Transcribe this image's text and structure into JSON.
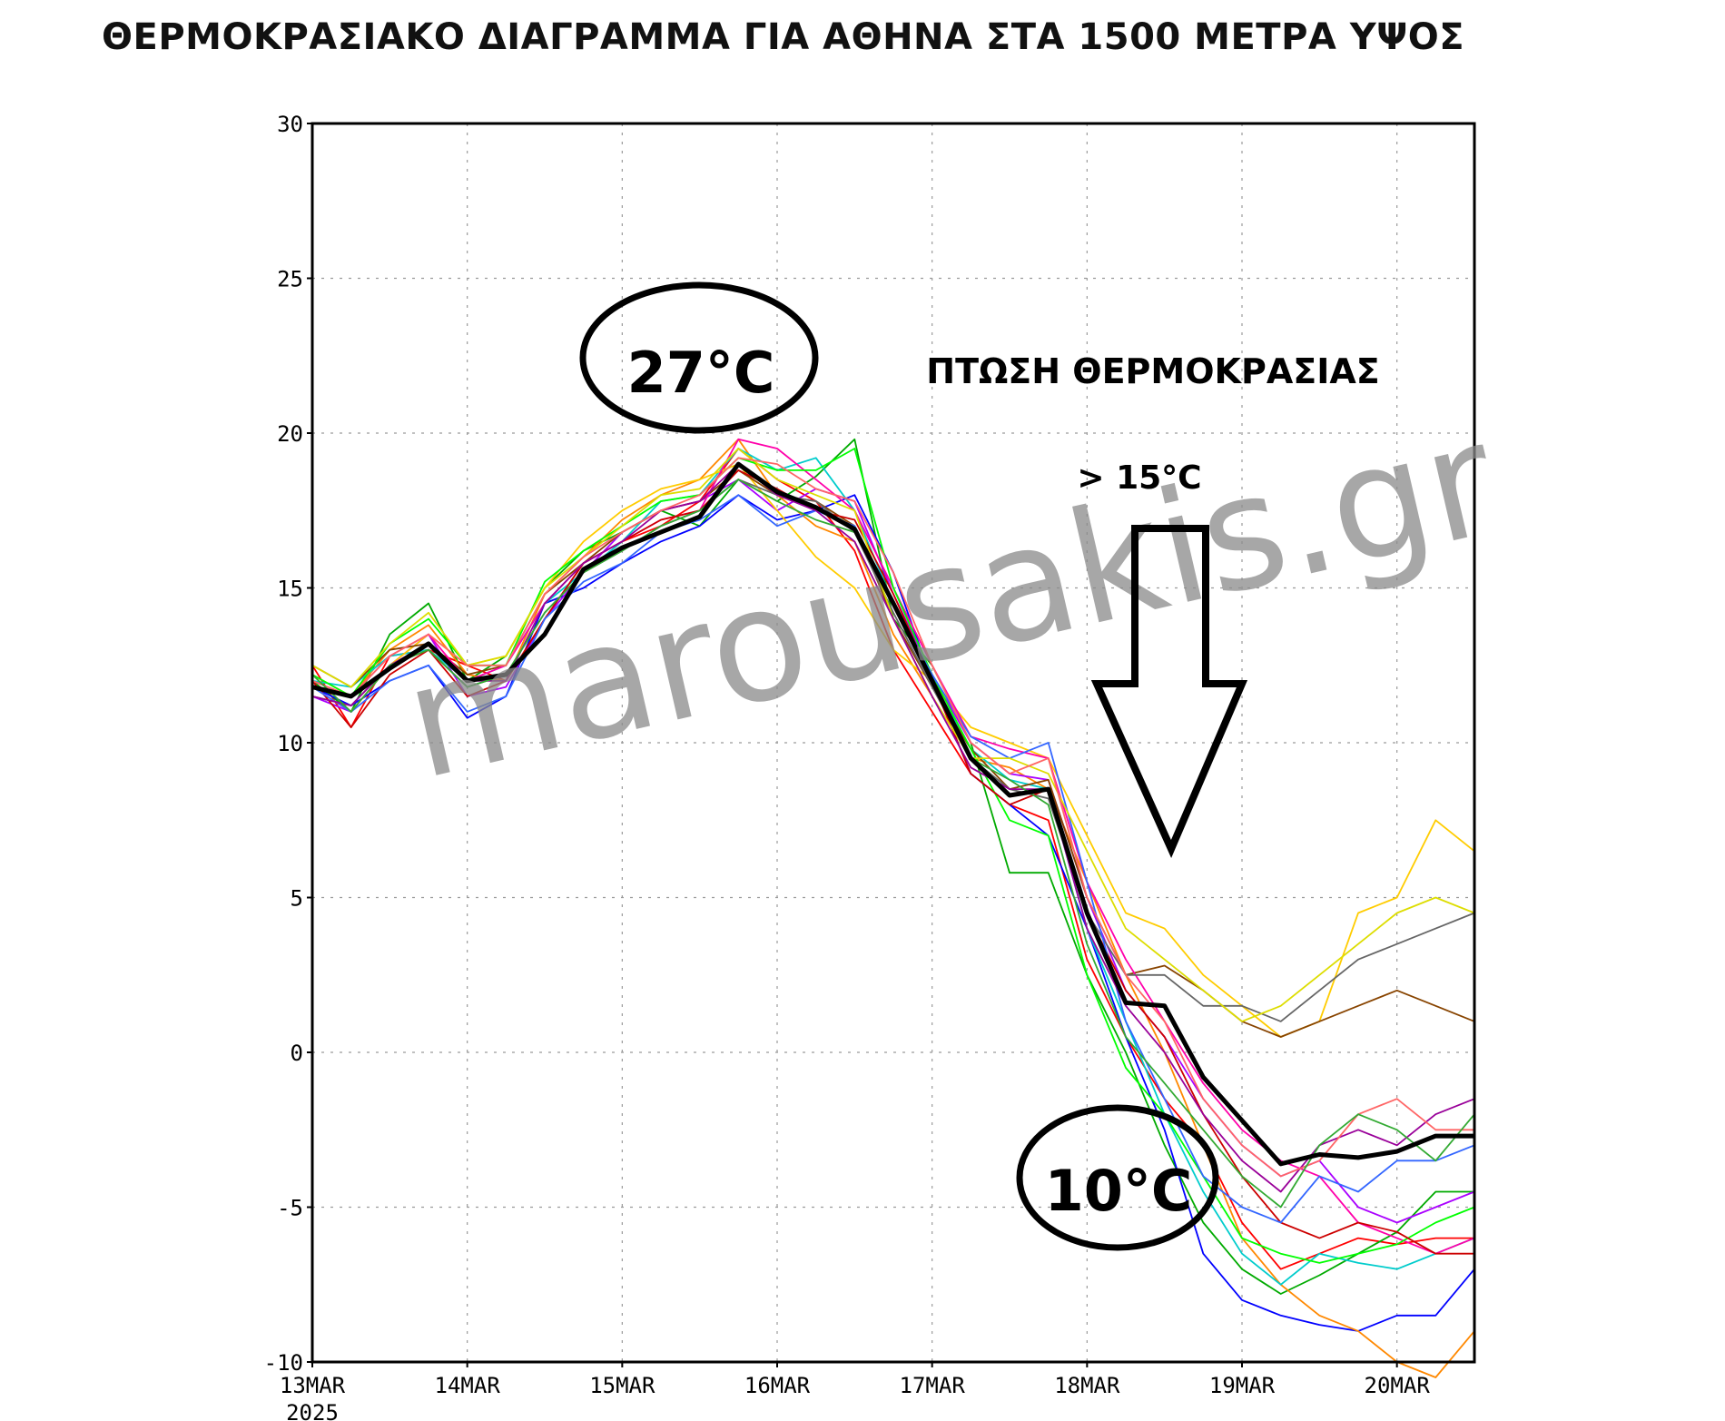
{
  "title": "ΘΕΡΜΟΚΡΑΣΙΑΚΟ ΔΙΑΓΡΑΜΜΑ ΓΙΑ ΑΘΗΝΑ ΣΤΑ 1500 ΜΕΤΡΑ ΥΨΟΣ",
  "watermark": "marousakis.gr",
  "annotations": {
    "peak_label": "27°C",
    "drop_label": "ΠΤΩΣΗ ΘΕΡΜΟΚΡΑΣΙΑΣ",
    "drop_amount": "> 15°C",
    "low_label": "10°C"
  },
  "colors": {
    "mean": "#000000",
    "members": [
      "#ff0000",
      "#00aa00",
      "#0000ff",
      "#ff8800",
      "#aa00ff",
      "#00cccc",
      "#ffcc00",
      "#884400",
      "#ff00aa",
      "#666666",
      "#00ff00",
      "#cc0000",
      "#3366ff",
      "#dddd00",
      "#990099",
      "#ff6666",
      "#33aa33"
    ]
  },
  "chart_data": {
    "type": "line",
    "title": "ΘΕΡΜΟΚΡΑΣΙΑΚΟ ΔΙΑΓΡΑΜΜΑ ΓΙΑ ΑΘΗΝΑ ΣΤΑ 1500 ΜΕΤΡΑ ΥΨΟΣ",
    "xlabel": "",
    "ylabel": "",
    "x_tick_labels": [
      "13MAR",
      "14MAR",
      "15MAR",
      "16MAR",
      "17MAR",
      "18MAR",
      "19MAR",
      "20MAR"
    ],
    "x_year_label": "2025",
    "y_ticks": [
      30,
      25,
      20,
      15,
      10,
      5,
      0,
      -5,
      -10
    ],
    "ylim": [
      -10,
      30
    ],
    "xlim_days": [
      0,
      7.5
    ],
    "grid": true,
    "x_days": [
      0,
      0.25,
      0.5,
      0.75,
      1,
      1.25,
      1.5,
      1.75,
      2,
      2.25,
      2.5,
      2.75,
      3,
      3.25,
      3.5,
      3.75,
      4,
      4.25,
      4.5,
      4.75,
      5,
      5.25,
      5.5,
      5.75,
      6,
      6.25,
      6.5,
      6.75,
      7,
      7.25,
      7.5
    ],
    "mean": [
      11.8,
      11.5,
      12.4,
      13.2,
      12.0,
      12.2,
      13.5,
      15.6,
      16.3,
      16.8,
      17.3,
      19.0,
      18.1,
      17.6,
      16.9,
      14.5,
      12.0,
      9.5,
      8.3,
      8.5,
      4.5,
      1.6,
      1.5,
      -0.8,
      -2.2,
      -3.6,
      -3.3,
      -3.4,
      -3.2,
      -2.7,
      -2.7
    ],
    "series": [
      {
        "values": [
          12.5,
          10.5,
          12.8,
          13.0,
          12.5,
          12.0,
          14.0,
          15.8,
          16.5,
          17.0,
          17.8,
          19.5,
          18.5,
          17.8,
          16.2,
          13.0,
          11.0,
          9.0,
          8.0,
          7.5,
          3.0,
          0.5,
          -1.5,
          -3.0,
          -5.5,
          -7.0,
          -6.5,
          -6.0,
          -6.2,
          -6.0,
          -6.0
        ]
      },
      {
        "values": [
          12.0,
          11.0,
          13.5,
          14.5,
          12.0,
          12.8,
          15.0,
          16.2,
          16.8,
          17.5,
          17.0,
          18.5,
          17.8,
          18.6,
          19.8,
          14.0,
          12.5,
          10.0,
          5.8,
          5.8,
          2.5,
          0.0,
          -3.0,
          -5.5,
          -7.0,
          -7.8,
          -7.2,
          -6.5,
          -5.8,
          -4.5,
          -4.5
        ]
      },
      {
        "values": [
          11.8,
          11.2,
          12.0,
          12.5,
          10.8,
          11.5,
          14.5,
          15.0,
          15.8,
          16.5,
          17.0,
          18.0,
          17.2,
          17.5,
          18.0,
          15.5,
          12.0,
          9.0,
          8.0,
          7.0,
          4.0,
          0.5,
          -2.5,
          -6.5,
          -8.0,
          -8.5,
          -8.8,
          -9.0,
          -8.5,
          -8.5,
          -7.0
        ]
      },
      {
        "values": [
          12.2,
          11.5,
          13.0,
          13.8,
          12.2,
          12.0,
          14.8,
          16.0,
          17.2,
          18.0,
          18.5,
          19.8,
          18.0,
          17.0,
          16.5,
          13.5,
          11.5,
          9.5,
          9.2,
          8.5,
          5.5,
          2.5,
          0.0,
          -3.0,
          -6.0,
          -7.5,
          -8.5,
          -9.0,
          -10.0,
          -10.5,
          -9.0
        ]
      },
      {
        "values": [
          11.5,
          11.0,
          12.5,
          13.5,
          11.5,
          11.8,
          14.0,
          15.5,
          16.8,
          17.5,
          17.8,
          18.5,
          17.5,
          18.2,
          17.8,
          14.8,
          12.2,
          10.0,
          9.0,
          8.8,
          5.0,
          2.0,
          0.5,
          -1.5,
          -3.0,
          -4.0,
          -3.5,
          -5.0,
          -5.5,
          -5.0,
          -4.5
        ]
      },
      {
        "values": [
          12.0,
          11.8,
          12.8,
          13.0,
          12.0,
          12.5,
          14.5,
          15.5,
          16.5,
          17.8,
          18.0,
          19.5,
          18.8,
          19.2,
          17.5,
          14.5,
          12.0,
          9.8,
          8.8,
          8.5,
          4.0,
          1.0,
          -2.0,
          -4.5,
          -6.5,
          -7.5,
          -6.5,
          -6.8,
          -7.0,
          -6.5,
          -6.0
        ]
      },
      {
        "values": [
          11.8,
          11.0,
          12.5,
          13.5,
          12.5,
          12.8,
          15.0,
          16.5,
          17.5,
          18.2,
          18.5,
          19.0,
          17.5,
          16.0,
          15.0,
          13.0,
          12.0,
          10.5,
          10.0,
          9.5,
          7.0,
          4.5,
          4.0,
          2.5,
          1.5,
          0.5,
          1.0,
          4.5,
          5.0,
          7.5,
          6.5
        ]
      },
      {
        "values": [
          12.5,
          11.8,
          13.0,
          13.2,
          12.2,
          12.5,
          14.8,
          15.8,
          16.8,
          17.5,
          17.8,
          18.8,
          18.0,
          17.8,
          17.0,
          14.0,
          11.8,
          9.8,
          8.5,
          8.8,
          5.0,
          2.5,
          2.8,
          2.0,
          1.0,
          0.5,
          1.0,
          1.5,
          2.0,
          1.5,
          1.0
        ]
      },
      {
        "values": [
          12.0,
          11.5,
          12.8,
          13.5,
          12.0,
          12.5,
          14.5,
          15.8,
          16.5,
          17.2,
          17.5,
          19.8,
          19.5,
          18.5,
          17.5,
          15.0,
          12.5,
          10.2,
          9.8,
          9.5,
          5.5,
          3.0,
          1.0,
          -1.0,
          -2.5,
          -3.5,
          -4.0,
          -5.5,
          -6.0,
          -6.5,
          -6.0
        ]
      },
      {
        "values": [
          11.5,
          11.2,
          12.5,
          13.0,
          11.8,
          12.2,
          14.2,
          15.5,
          16.2,
          17.0,
          17.5,
          18.5,
          18.0,
          17.8,
          16.8,
          14.2,
          11.8,
          9.5,
          8.5,
          8.2,
          4.5,
          2.5,
          2.5,
          1.5,
          1.5,
          1.0,
          2.0,
          3.0,
          3.5,
          4.0,
          4.5
        ]
      },
      {
        "values": [
          12.2,
          11.5,
          13.2,
          14.0,
          12.5,
          12.5,
          15.2,
          16.2,
          17.0,
          17.8,
          18.0,
          19.2,
          18.8,
          18.8,
          19.5,
          15.0,
          12.2,
          9.8,
          7.5,
          7.0,
          2.5,
          -0.5,
          -2.0,
          -4.0,
          -6.0,
          -6.5,
          -6.8,
          -6.5,
          -6.2,
          -5.5,
          -5.0
        ]
      },
      {
        "values": [
          12.0,
          10.5,
          12.2,
          13.0,
          11.5,
          12.0,
          14.0,
          15.8,
          16.5,
          17.2,
          17.5,
          18.8,
          18.2,
          17.5,
          17.2,
          14.8,
          12.0,
          9.0,
          8.0,
          8.5,
          4.5,
          2.0,
          0.5,
          -2.0,
          -4.0,
          -5.5,
          -6.0,
          -5.5,
          -5.8,
          -6.5,
          -6.5
        ]
      },
      {
        "values": [
          11.8,
          11.0,
          12.0,
          12.5,
          11.0,
          11.5,
          14.0,
          15.2,
          15.8,
          16.8,
          17.2,
          18.0,
          17.0,
          17.5,
          17.0,
          14.5,
          12.2,
          10.2,
          9.5,
          10.0,
          5.5,
          1.0,
          -1.5,
          -4.0,
          -5.0,
          -5.5,
          -4.0,
          -4.5,
          -3.5,
          -3.5,
          -3.0
        ]
      },
      {
        "values": [
          12.5,
          11.8,
          13.2,
          14.2,
          12.5,
          12.8,
          15.0,
          16.0,
          17.0,
          18.0,
          18.2,
          19.5,
          18.5,
          18.0,
          17.5,
          14.0,
          11.5,
          9.5,
          9.5,
          9.0,
          6.5,
          4.0,
          3.0,
          2.0,
          1.0,
          1.5,
          2.5,
          3.5,
          4.5,
          5.0,
          4.5
        ]
      },
      {
        "values": [
          11.5,
          11.2,
          12.5,
          13.2,
          12.0,
          12.0,
          14.5,
          15.8,
          16.5,
          17.5,
          17.8,
          19.0,
          18.0,
          17.5,
          16.5,
          14.0,
          11.5,
          9.2,
          8.5,
          8.5,
          4.0,
          1.5,
          0.0,
          -2.0,
          -3.5,
          -4.5,
          -3.0,
          -2.5,
          -3.0,
          -2.0,
          -1.5
        ]
      },
      {
        "values": [
          12.0,
          11.5,
          12.8,
          13.5,
          12.5,
          12.5,
          14.8,
          16.0,
          16.8,
          17.5,
          18.0,
          19.2,
          19.0,
          18.2,
          17.8,
          15.5,
          12.5,
          10.0,
          9.0,
          9.5,
          5.0,
          2.5,
          1.0,
          -1.5,
          -3.0,
          -4.0,
          -3.5,
          -2.0,
          -1.5,
          -2.5,
          -2.5
        ]
      },
      {
        "values": [
          12.2,
          11.0,
          12.5,
          13.0,
          11.8,
          12.2,
          14.2,
          15.5,
          16.2,
          17.0,
          17.5,
          18.5,
          17.8,
          17.2,
          16.8,
          14.5,
          12.0,
          9.5,
          8.8,
          8.0,
          3.5,
          0.5,
          -1.0,
          -2.5,
          -4.0,
          -5.0,
          -3.0,
          -2.0,
          -2.5,
          -3.5,
          -2.0
        ]
      }
    ]
  }
}
